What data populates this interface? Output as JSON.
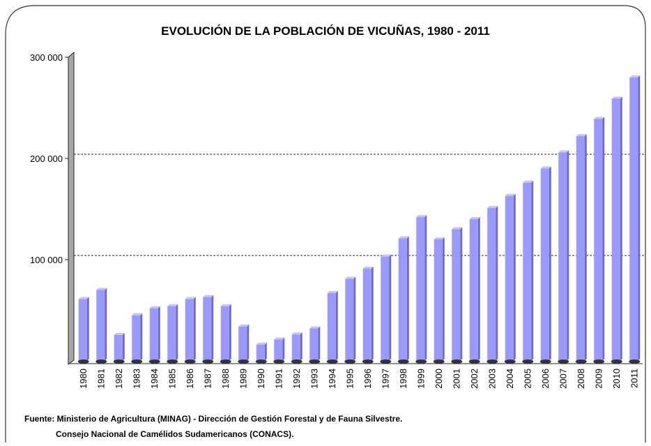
{
  "chart_data": {
    "type": "bar",
    "title": "EVOLUCIÓN DE LA POBLACIÓN DE VICUÑAS, 1980 - 2011",
    "categories": [
      "1980",
      "1981",
      "1982",
      "1983",
      "1984",
      "1985",
      "1986",
      "1987",
      "1988",
      "1989",
      "1990",
      "1991",
      "1992",
      "1993",
      "1994",
      "1995",
      "1996",
      "1997",
      "1998",
      "1999",
      "2000",
      "2001",
      "2002",
      "2003",
      "2004",
      "2005",
      "2006",
      "2007",
      "2008",
      "2009",
      "2010",
      "2011"
    ],
    "values": [
      61000,
      70000,
      25500,
      45000,
      52000,
      54000,
      61000,
      63000,
      54000,
      34000,
      16000,
      21000,
      26000,
      32000,
      67000,
      81000,
      91000,
      103000,
      121000,
      142000,
      120000,
      130000,
      140000,
      151000,
      163000,
      176000,
      190000,
      206000,
      222000,
      239000,
      259000,
      280000
    ],
    "color": "#9999ff",
    "ylim": [
      0,
      300000
    ],
    "yticks": [
      {
        "value": 100000,
        "label": "100 000"
      },
      {
        "value": 200000,
        "label": "200 000"
      },
      {
        "value": 300000,
        "label": "300 000"
      }
    ],
    "grid": true,
    "source": [
      "Fuente: Ministerio de Agricultura (MINAG) - Dirección de Gestión Forestal y de Fauna Silvestre.",
      "Consejo Nacional de Camélidos Sudamericanos (CONACS)."
    ]
  }
}
